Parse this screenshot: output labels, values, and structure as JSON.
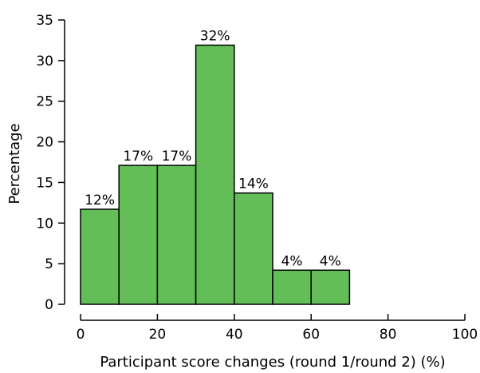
{
  "chart_data": {
    "type": "bar",
    "title": "",
    "xlabel": "Participant score changes (round 1/round 2) (%)",
    "ylabel": "Percentage",
    "xlim": [
      0,
      100
    ],
    "ylim": [
      0,
      35
    ],
    "xticks": [
      0,
      20,
      40,
      60,
      80,
      100
    ],
    "yticks": [
      0,
      5,
      10,
      15,
      20,
      25,
      30,
      35
    ],
    "bins": [
      {
        "start": 0,
        "end": 10,
        "value": 11.7,
        "label": "12%"
      },
      {
        "start": 10,
        "end": 20,
        "value": 17.1,
        "label": "17%"
      },
      {
        "start": 20,
        "end": 30,
        "value": 17.1,
        "label": "17%"
      },
      {
        "start": 30,
        "end": 40,
        "value": 31.9,
        "label": "32%"
      },
      {
        "start": 40,
        "end": 50,
        "value": 13.7,
        "label": "14%"
      },
      {
        "start": 50,
        "end": 60,
        "value": 4.2,
        "label": "4%"
      },
      {
        "start": 60,
        "end": 70,
        "value": 4.2,
        "label": "4%"
      }
    ],
    "bar_color": "#63be58",
    "grid": false,
    "legend": "none"
  }
}
